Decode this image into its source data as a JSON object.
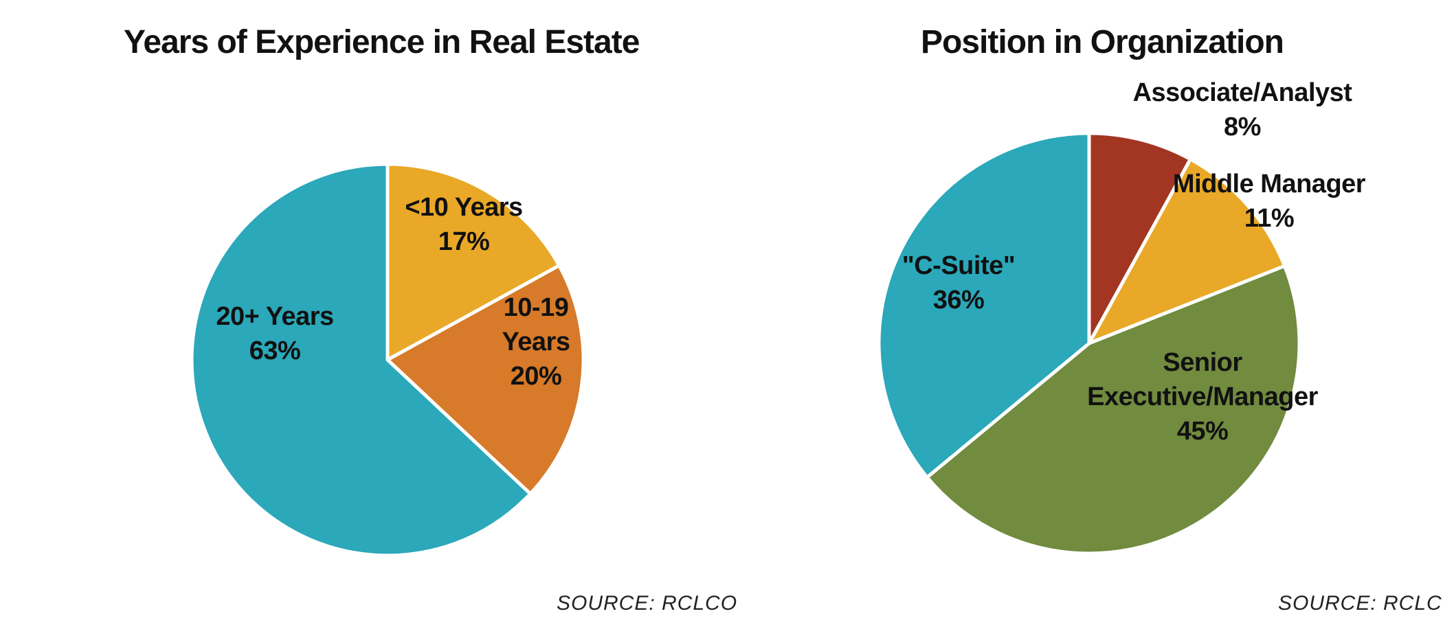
{
  "chart_data": [
    {
      "type": "pie",
      "title": "Years of Experience in Real Estate",
      "source": "SOURCE:  RCLCO",
      "slices": [
        {
          "label_lines": [
            "<10 Years"
          ],
          "value": 17,
          "value_label": "17%",
          "color": "#E9A827"
        },
        {
          "label_lines": [
            "10-19",
            "Years"
          ],
          "value": 20,
          "value_label": "20%",
          "color": "#D77A29"
        },
        {
          "label_lines": [
            "20+ Years"
          ],
          "value": 63,
          "value_label": "63%",
          "color": "#2BA8B9"
        }
      ]
    },
    {
      "type": "pie",
      "title": "Position in Organization",
      "source": "SOURCE:  RCLCO",
      "slices": [
        {
          "label_lines": [
            "Associate/Analyst"
          ],
          "value": 8,
          "value_label": "8%",
          "color": "#A23622"
        },
        {
          "label_lines": [
            "Middle Manager"
          ],
          "value": 11,
          "value_label": "11%",
          "color": "#E9A827"
        },
        {
          "label_lines": [
            "Senior",
            "Executive/Manager"
          ],
          "value": 45,
          "value_label": "45%",
          "color": "#718B3F"
        },
        {
          "label_lines": [
            "\"C-Suite\""
          ],
          "value": 36,
          "value_label": "36%",
          "color": "#2BA8B9"
        }
      ]
    }
  ]
}
